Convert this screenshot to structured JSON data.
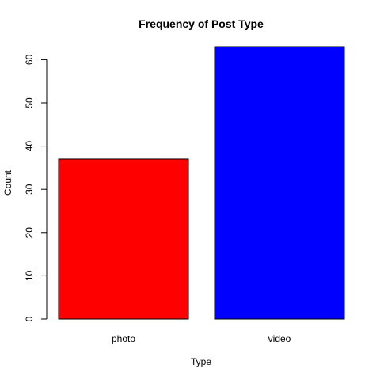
{
  "chart_data": {
    "type": "bar",
    "title": "Frequency of Post Type",
    "xlabel": "Type",
    "ylabel": "Count",
    "categories": [
      "photo",
      "video"
    ],
    "values": [
      37,
      63
    ],
    "colors": [
      "#ff0000",
      "#0000ff"
    ],
    "ylim": [
      0,
      63
    ],
    "yticks": [
      0,
      10,
      20,
      30,
      40,
      50,
      60
    ],
    "grid": false,
    "legend": "none"
  }
}
